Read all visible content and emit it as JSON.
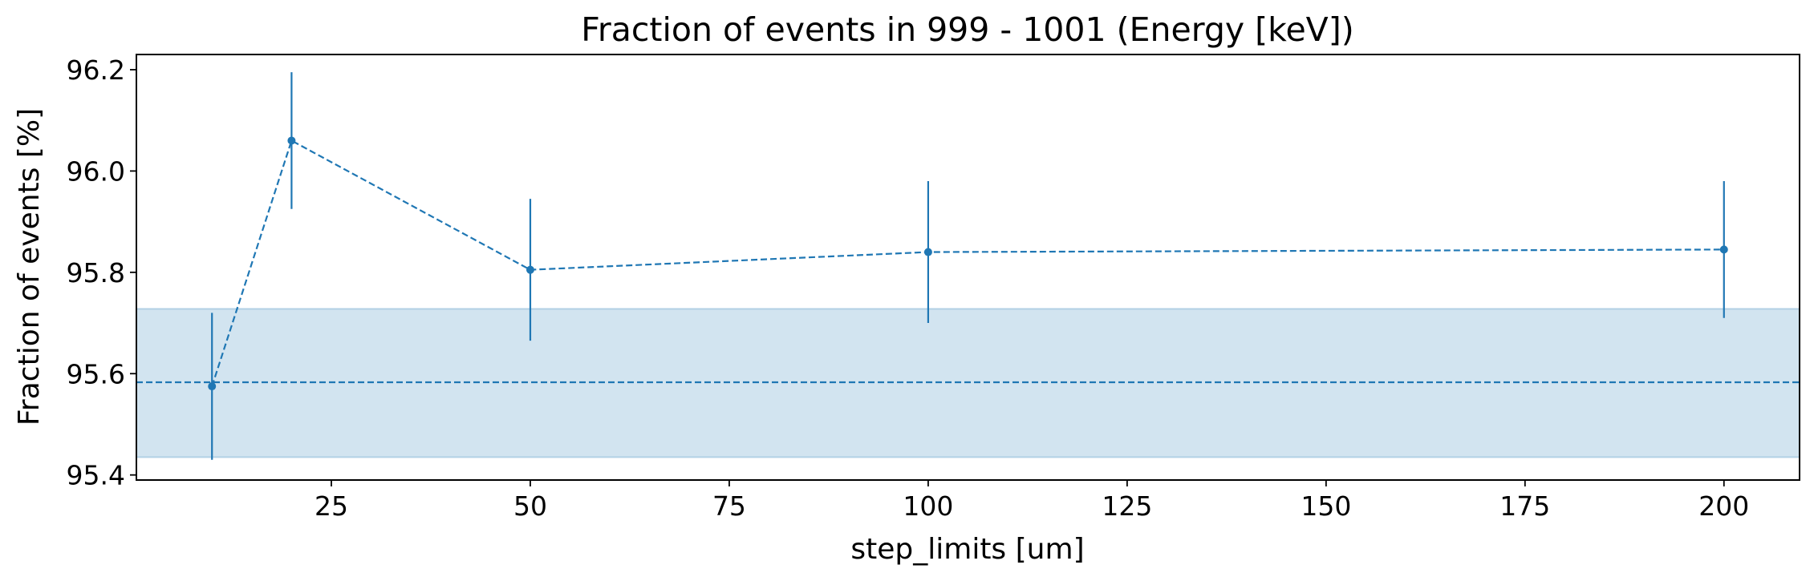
{
  "chart_data": {
    "type": "line",
    "title": "Fraction of events in 999 - 1001 (Energy [keV])",
    "xlabel": "step_limits [um]",
    "ylabel": "Fraction of events [%]",
    "xlim": [
      0.5,
      209.5
    ],
    "ylim": [
      95.39,
      96.23
    ],
    "xticks": [
      25,
      50,
      75,
      100,
      125,
      150,
      175,
      200
    ],
    "xtick_labels": [
      "25",
      "50",
      "75",
      "100",
      "125",
      "150",
      "175",
      "200"
    ],
    "yticks": [
      95.4,
      95.6,
      95.8,
      96.0,
      96.2
    ],
    "ytick_labels": [
      "95.4",
      "95.6",
      "95.8",
      "96.0",
      "96.2"
    ],
    "grid": false,
    "series": [
      {
        "x": [
          10,
          20,
          50,
          100,
          200
        ],
        "y": [
          95.575,
          96.06,
          95.805,
          95.84,
          95.845
        ],
        "yerr": [
          0.145,
          0.135,
          0.14,
          0.14,
          0.135
        ],
        "line_style": "dashed",
        "marker": "circle",
        "color": "#1f77b4"
      }
    ],
    "reference": {
      "y": 95.583,
      "band": [
        95.435,
        95.728
      ],
      "line_style": "dashed",
      "color": "#1f77b4",
      "band_color": "#1f77b4"
    }
  }
}
